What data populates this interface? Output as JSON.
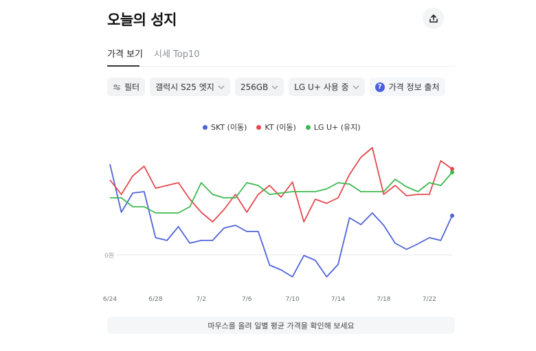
{
  "header": {
    "title": "오늘의 성지",
    "share_icon": "share-upload-icon"
  },
  "tabs": [
    {
      "label": "가격 보기",
      "active": true
    },
    {
      "label": "시세 Top10",
      "active": false
    }
  ],
  "filters": {
    "filter_label": "필터",
    "filter_icon": "sliders-icon",
    "model": "갤럭시 S25 엣지",
    "storage": "256GB",
    "carrier": "LG U+ 사용 중",
    "info_label": "가격 정보 출처",
    "info_icon": "question-circle-icon"
  },
  "colors": {
    "skt": "#4f63d9",
    "kt": "#e5484d",
    "lg": "#3cb94f"
  },
  "chart_data": {
    "type": "line",
    "title": "",
    "xlabel": "",
    "ylabel": "",
    "y_zero_label": "0원",
    "legend_position": "top",
    "grid": false,
    "x": [
      "6/24",
      "6/25",
      "6/26",
      "6/27",
      "6/28",
      "6/29",
      "6/30",
      "7/1",
      "7/2",
      "7/3",
      "7/4",
      "7/5",
      "7/6",
      "7/7",
      "7/8",
      "7/9",
      "7/10",
      "7/11",
      "7/12",
      "7/13",
      "7/14",
      "7/15",
      "7/16",
      "7/17",
      "7/18",
      "7/19",
      "7/20",
      "7/21",
      "7/22",
      "7/23",
      "7/24"
    ],
    "x_tick_labels": [
      "6/24",
      "6/28",
      "7/2",
      "7/6",
      "7/10",
      "7/14",
      "7/18",
      "7/22"
    ],
    "units_note": "relative values (px above 0원 baseline); no absolute scale shown",
    "series": [
      {
        "name": "SKT (이동)",
        "color": "#4f63d9",
        "values": [
          132,
          62,
          90,
          92,
          25,
          21,
          41,
          17,
          21,
          21,
          39,
          43,
          34,
          34,
          -15,
          -22,
          -32,
          -1,
          -8,
          -32,
          -14,
          54,
          44,
          61,
          43,
          17,
          8,
          16,
          25,
          21,
          57
        ]
      },
      {
        "name": "KT (이동)",
        "color": "#e5484d",
        "values": [
          109,
          88,
          115,
          129,
          97,
          101,
          105,
          81,
          62,
          48,
          66,
          88,
          62,
          88,
          101,
          84,
          106,
          48,
          81,
          75,
          83,
          117,
          142,
          156,
          88,
          101,
          86,
          88,
          88,
          137,
          125
        ]
      },
      {
        "name": "LG U+ (유지)",
        "color": "#3cb94f",
        "values": [
          83,
          83,
          70,
          70,
          61,
          61,
          61,
          70,
          105,
          88,
          83,
          83,
          105,
          101,
          88,
          90,
          92,
          92,
          92,
          96,
          105,
          103,
          92,
          92,
          92,
          110,
          99,
          92,
          105,
          101,
          120
        ]
      }
    ]
  },
  "hint": "마우스를 올려 일별 평균 가격을 확인해 보세요"
}
